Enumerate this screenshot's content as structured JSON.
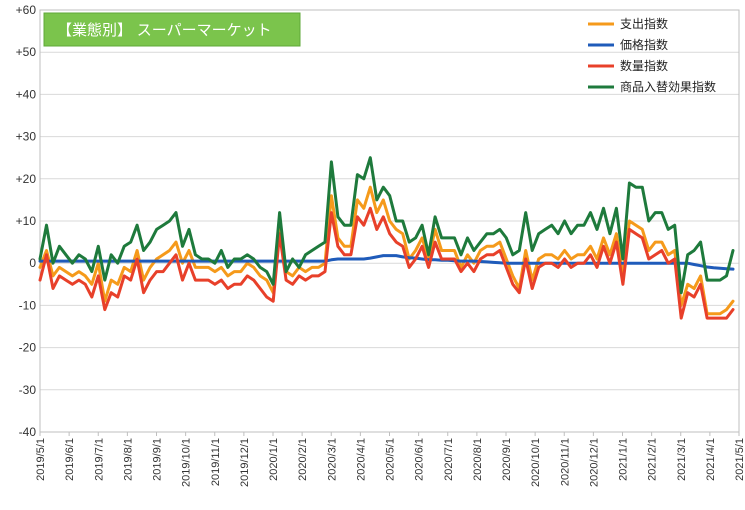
{
  "chart_data": {
    "type": "line",
    "title": "【業態別】 スーパーマーケット",
    "xlabel": "",
    "ylabel": "",
    "ylim": [
      -40,
      60
    ],
    "yticks": [
      {
        "value": 60,
        "label": "+60"
      },
      {
        "value": 50,
        "label": "+50"
      },
      {
        "value": 40,
        "label": "+40"
      },
      {
        "value": 30,
        "label": "+30"
      },
      {
        "value": 20,
        "label": "+20"
      },
      {
        "value": 10,
        "label": "+10"
      },
      {
        "value": 0,
        "label": "0"
      },
      {
        "value": -10,
        "label": "-10"
      },
      {
        "value": -20,
        "label": "-20"
      },
      {
        "value": -30,
        "label": "-30"
      },
      {
        "value": -40,
        "label": "-40"
      }
    ],
    "grid": true,
    "legend_position": "top-right",
    "x_start": "2019/5/1",
    "x_end": "2021/5/1",
    "x_tick_labels": [
      "2019/5/1",
      "2019/6/1",
      "2019/7/1",
      "2019/8/1",
      "2019/9/1",
      "2019/10/1",
      "2019/11/1",
      "2019/12/1",
      "2020/1/1",
      "2020/2/1",
      "2020/3/1",
      "2020/4/1",
      "2020/5/1",
      "2020/6/1",
      "2020/7/1",
      "2020/8/1",
      "2020/9/1",
      "2020/10/1",
      "2020/11/1",
      "2020/12/1",
      "2021/1/1",
      "2021/2/1",
      "2021/3/1",
      "2021/4/1",
      "2021/5/1"
    ],
    "series": [
      {
        "name": "支出指数",
        "color": "#F59A1B",
        "values": [
          -1,
          3,
          -3,
          -1,
          -2,
          -3,
          -2,
          -3,
          -5,
          0,
          -9,
          -4,
          -5,
          -1,
          -2,
          3,
          -4,
          -1,
          1,
          2,
          3,
          5,
          0,
          3,
          -1,
          -1,
          -1,
          -2,
          -1,
          -3,
          -2,
          -2,
          0,
          -1,
          -3,
          -4,
          -7,
          10,
          -2,
          -3,
          -1,
          -2,
          -1,
          -1,
          0,
          16,
          6,
          4,
          4,
          15,
          13,
          18,
          12,
          15,
          10,
          8,
          7,
          1,
          3,
          6,
          1,
          8,
          3,
          3,
          3,
          -1,
          2,
          0,
          3,
          4,
          4,
          5,
          1,
          -3,
          -6,
          3,
          -4,
          1,
          2,
          2,
          1,
          3,
          1,
          2,
          2,
          4,
          1,
          6,
          2,
          7,
          -3,
          10,
          9,
          8,
          3,
          5,
          5,
          2,
          3,
          -10,
          -5,
          -6,
          -3,
          -12,
          -12,
          -12,
          -11,
          -9
        ]
      },
      {
        "name": "価格指数",
        "color": "#1F5BBA",
        "values": [
          0.5,
          0.5,
          0.5,
          0.5,
          0.5,
          0.5,
          0.5,
          0.5,
          0.5,
          0.5,
          0.5,
          0.5,
          0.5,
          0.5,
          0.5,
          0.5,
          0.5,
          0.5,
          0.5,
          0.5,
          0.5,
          0.5,
          0.5,
          0.5,
          0.5,
          0.5,
          0.5,
          0.5,
          0.5,
          0.5,
          0.5,
          0.5,
          0.5,
          0.5,
          0.5,
          0.5,
          0.5,
          0.5,
          0.5,
          0.5,
          0.5,
          0.5,
          0.5,
          0.5,
          0.5,
          0.8,
          1,
          1,
          1,
          1,
          1,
          1.2,
          1.5,
          1.8,
          1.8,
          1.8,
          1.5,
          1.3,
          1.2,
          1,
          0.8,
          0.8,
          0.7,
          0.7,
          0.6,
          0.5,
          0.5,
          0.5,
          0.4,
          0.3,
          0.2,
          0.1,
          0,
          0,
          0,
          0,
          0,
          0,
          0,
          0,
          0,
          0,
          0,
          0,
          0,
          0,
          0,
          0,
          0,
          0,
          0,
          0,
          0,
          0,
          0,
          0,
          0,
          0,
          0,
          0,
          0,
          -0.3,
          -0.6,
          -0.9,
          -1.1,
          -1.2,
          -1.3,
          -1.4
        ]
      },
      {
        "name": "数量指数",
        "color": "#E8402A",
        "values": [
          -4,
          2,
          -6,
          -3,
          -4,
          -5,
          -4,
          -5,
          -8,
          -3,
          -11,
          -7,
          -8,
          -3,
          -4,
          1,
          -7,
          -4,
          -2,
          -2,
          0,
          2,
          -4,
          0,
          -4,
          -4,
          -4,
          -5,
          -4,
          -6,
          -5,
          -5,
          -3,
          -4,
          -6,
          -8,
          -9,
          7,
          -4,
          -5,
          -3,
          -4,
          -3,
          -3,
          -2,
          12,
          4,
          2,
          2,
          11,
          9,
          13,
          8,
          11,
          7,
          5,
          4,
          -1,
          1,
          4,
          -1,
          5,
          1,
          1,
          1,
          -2,
          0,
          -2,
          1,
          2,
          2,
          3,
          -1,
          -5,
          -7,
          1,
          -6,
          -1,
          0,
          0,
          -1,
          1,
          -1,
          0,
          0,
          2,
          -1,
          4,
          0,
          5,
          -5,
          8,
          7,
          6,
          1,
          2,
          3,
          0,
          1,
          -13,
          -7,
          -8,
          -5,
          -13,
          -13,
          -13,
          -13,
          -11
        ]
      },
      {
        "name": "商品入替効果指数",
        "color": "#1E7A3C",
        "values": [
          1,
          9,
          0,
          4,
          2,
          0,
          2,
          1,
          -2,
          4,
          -4,
          2,
          0,
          4,
          5,
          9,
          3,
          5,
          8,
          9,
          10,
          12,
          4,
          8,
          2,
          1,
          1,
          0,
          3,
          -1,
          1,
          1,
          2,
          1,
          -1,
          -2,
          -5,
          12,
          -2,
          1,
          -1,
          2,
          3,
          4,
          5,
          24,
          11,
          9,
          9,
          21,
          20,
          25,
          15,
          18,
          16,
          10,
          10,
          5,
          6,
          9,
          2,
          11,
          6,
          6,
          6,
          2,
          6,
          3,
          5,
          7,
          7,
          8,
          6,
          2,
          3,
          12,
          3,
          7,
          8,
          9,
          7,
          10,
          7,
          9,
          9,
          12,
          8,
          13,
          7,
          13,
          1,
          19,
          18,
          18,
          10,
          12,
          12,
          8,
          9,
          -7,
          2,
          3,
          5,
          -4,
          -4,
          -4,
          -3,
          3
        ]
      }
    ]
  }
}
